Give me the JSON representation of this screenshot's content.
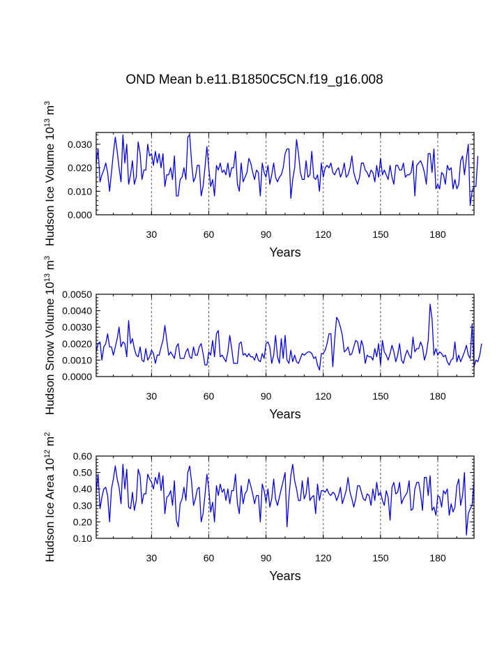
{
  "title": "OND Mean b.e11.B1850C5CN.f19_g16.008",
  "colors": {
    "line": "#0000ee",
    "axis": "#000000",
    "ref": "#555555"
  },
  "chart_data": [
    {
      "type": "line",
      "ylabel_main": "Hudson Ice Volume 10",
      "ylabel_exp": "13",
      "ylabel_unit": " m",
      "ylabel_unit_exp": "3",
      "xlabel": "Years",
      "xlim": [
        1,
        199
      ],
      "ylim": [
        0.0,
        0.035
      ],
      "xticks": [
        30,
        60,
        90,
        120,
        150,
        180
      ],
      "xtick_labels": [
        "30",
        "60",
        "90",
        "120",
        "150",
        "180"
      ],
      "yticks": [
        0.0,
        0.01,
        0.02,
        0.03
      ],
      "ytick_labels": [
        "0.000",
        "0.010",
        "0.020",
        "0.030"
      ],
      "ref_lines": [
        30,
        60,
        90,
        120,
        150,
        180
      ],
      "x_start": 1,
      "values": [
        0.022,
        0.028,
        0.014,
        0.017,
        0.019,
        0.022,
        0.018,
        0.01,
        0.018,
        0.026,
        0.033,
        0.027,
        0.02,
        0.014,
        0.034,
        0.022,
        0.03,
        0.013,
        0.017,
        0.023,
        0.013,
        0.016,
        0.031,
        0.026,
        0.015,
        0.019,
        0.019,
        0.03,
        0.025,
        0.026,
        0.021,
        0.027,
        0.022,
        0.026,
        0.02,
        0.026,
        0.012,
        0.017,
        0.017,
        0.02,
        0.015,
        0.025,
        0.008,
        0.008,
        0.015,
        0.016,
        0.02,
        0.015,
        0.033,
        0.034,
        0.022,
        0.014,
        0.016,
        0.021,
        0.021,
        0.008,
        0.012,
        0.02,
        0.029,
        0.02,
        0.012,
        0.015,
        0.008,
        0.021,
        0.019,
        0.022,
        0.018,
        0.019,
        0.017,
        0.022,
        0.016,
        0.02,
        0.02,
        0.027,
        0.013,
        0.01,
        0.022,
        0.014,
        0.016,
        0.018,
        0.024,
        0.022,
        0.018,
        0.015,
        0.019,
        0.018,
        0.008,
        0.022,
        0.018,
        0.016,
        0.021,
        0.013,
        0.017,
        0.022,
        0.016,
        0.014,
        0.016,
        0.017,
        0.02,
        0.026,
        0.028,
        0.028,
        0.007,
        0.015,
        0.02,
        0.032,
        0.026,
        0.018,
        0.015,
        0.015,
        0.023,
        0.016,
        0.017,
        0.027,
        0.016,
        0.015,
        0.017,
        0.01,
        0.022,
        0.016,
        0.02,
        0.021,
        0.02,
        0.022,
        0.018,
        0.017,
        0.019,
        0.02,
        0.016,
        0.018,
        0.022,
        0.016,
        0.017,
        0.02,
        0.025,
        0.018,
        0.015,
        0.013,
        0.016,
        0.022,
        0.022,
        0.019,
        0.018,
        0.016,
        0.019,
        0.018,
        0.014,
        0.021,
        0.016,
        0.024,
        0.017,
        0.019,
        0.017,
        0.015,
        0.021,
        0.016,
        0.013,
        0.021,
        0.021,
        0.019,
        0.019,
        0.022,
        0.016,
        0.017,
        0.017,
        0.018,
        0.023,
        0.008,
        0.021,
        0.022,
        0.023,
        0.021,
        0.018,
        0.013,
        0.026,
        0.026,
        0.018,
        0.028,
        0.011,
        0.013,
        0.011,
        0.018,
        0.017,
        0.013,
        0.021,
        0.019,
        0.02,
        0.011,
        0.015,
        0.011,
        0.013,
        0.023,
        0.025,
        0.017,
        0.024,
        0.03,
        0.004,
        0.01,
        0.012,
        0.012,
        0.025
      ]
    },
    {
      "type": "line",
      "ylabel_main": "Hudson Snow Volume 10",
      "ylabel_exp": "13",
      "ylabel_unit": " m",
      "ylabel_unit_exp": "3",
      "xlabel": "Years",
      "xlim": [
        1,
        199
      ],
      "ylim": [
        0.0,
        0.005
      ],
      "xticks": [
        30,
        60,
        90,
        120,
        150,
        180
      ],
      "xtick_labels": [
        "30",
        "60",
        "90",
        "120",
        "150",
        "180"
      ],
      "yticks": [
        0.0,
        0.001,
        0.002,
        0.003,
        0.004,
        0.005
      ],
      "ytick_labels": [
        "0.0000",
        "0.0010",
        "0.0020",
        "0.0030",
        "0.0040",
        "0.0050"
      ],
      "ref_lines": [
        30,
        60,
        90,
        120,
        150,
        180
      ],
      "x_start": 1,
      "values": [
        0.0015,
        0.002,
        0.0021,
        0.001,
        0.0018,
        0.002,
        0.0026,
        0.0018,
        0.0018,
        0.0013,
        0.0018,
        0.0023,
        0.003,
        0.0018,
        0.0021,
        0.002,
        0.0012,
        0.0034,
        0.002,
        0.0023,
        0.0017,
        0.0013,
        0.0012,
        0.0018,
        0.001,
        0.0009,
        0.0017,
        0.001,
        0.0012,
        0.0016,
        0.0014,
        0.0008,
        0.0013,
        0.0013,
        0.0018,
        0.0022,
        0.0031,
        0.0022,
        0.0013,
        0.0015,
        0.0013,
        0.0011,
        0.0018,
        0.002,
        0.0011,
        0.0011,
        0.0011,
        0.0015,
        0.0017,
        0.0012,
        0.0011,
        0.0018,
        0.0013,
        0.0013,
        0.0018,
        0.002,
        0.0014,
        0.0007,
        0.0007,
        0.0015,
        0.0013,
        0.0022,
        0.0012,
        0.0026,
        0.0028,
        0.0012,
        0.0013,
        0.0011,
        0.0009,
        0.0015,
        0.0025,
        0.0017,
        0.0008,
        0.0008,
        0.0008,
        0.002,
        0.0021,
        0.0013,
        0.0014,
        0.0012,
        0.0014,
        0.0012,
        0.0012,
        0.001,
        0.0014,
        0.001,
        0.0009,
        0.0014,
        0.0011,
        0.002,
        0.0021,
        0.0018,
        0.0008,
        0.0013,
        0.0025,
        0.0012,
        0.0008,
        0.0023,
        0.0011,
        0.0025,
        0.001,
        0.0008,
        0.0016,
        0.0009,
        0.0013,
        0.0009,
        0.0008,
        0.0011,
        0.0014,
        0.0013,
        0.0014,
        0.0015,
        0.0015,
        0.0014,
        0.0011,
        0.0012,
        0.0007,
        0.0004,
        0.0014,
        0.0014,
        0.0016,
        0.002,
        0.0026,
        0.0026,
        0.0006,
        0.0023,
        0.0036,
        0.0034,
        0.003,
        0.0025,
        0.0015,
        0.0016,
        0.0018,
        0.0013,
        0.0014,
        0.0018,
        0.0022,
        0.0021,
        0.0014,
        0.0022,
        0.0018,
        0.0008,
        0.0013,
        0.0012,
        0.0012,
        0.001,
        0.0017,
        0.0012,
        0.002,
        0.0007,
        0.0022,
        0.0015,
        0.0013,
        0.001,
        0.0014,
        0.0019,
        0.0015,
        0.0009,
        0.0013,
        0.002,
        0.001,
        0.0008,
        0.0013,
        0.0016,
        0.0013,
        0.0011,
        0.0024,
        0.0015,
        0.0017,
        0.0017,
        0.0021,
        0.0018,
        0.001,
        0.0014,
        0.0022,
        0.0044,
        0.0035,
        0.0013,
        0.0017,
        0.0013,
        0.0015,
        0.0014,
        0.0012,
        0.0013,
        0.0009,
        0.0007,
        0.001,
        0.0011,
        0.0021,
        0.0009,
        0.0013,
        0.0009,
        0.0012,
        0.0015,
        0.0019,
        0.0013,
        0.0011,
        0.0032,
        0.0006,
        0.001,
        0.0009,
        0.0013,
        0.002
      ]
    },
    {
      "type": "line",
      "ylabel_main": "Hudson Ice Area 10",
      "ylabel_exp": "12",
      "ylabel_unit": " m",
      "ylabel_unit_exp": "2",
      "xlabel": "Years",
      "xlim": [
        1,
        199
      ],
      "ylim": [
        0.1,
        0.6
      ],
      "xticks": [
        30,
        60,
        90,
        120,
        150,
        180
      ],
      "xtick_labels": [
        "30",
        "60",
        "90",
        "120",
        "150",
        "180"
      ],
      "yticks": [
        0.1,
        0.2,
        0.3,
        0.4,
        0.5,
        0.6
      ],
      "ytick_labels": [
        "0.10",
        "0.20",
        "0.30",
        "0.40",
        "0.50",
        "0.60"
      ],
      "ref_lines": [
        30,
        60,
        90,
        120,
        150,
        180
      ],
      "x_start": 1,
      "values": [
        0.38,
        0.49,
        0.28,
        0.35,
        0.4,
        0.41,
        0.36,
        0.2,
        0.4,
        0.46,
        0.54,
        0.46,
        0.41,
        0.31,
        0.55,
        0.4,
        0.52,
        0.29,
        0.28,
        0.38,
        0.27,
        0.33,
        0.52,
        0.48,
        0.31,
        0.37,
        0.37,
        0.49,
        0.46,
        0.44,
        0.4,
        0.47,
        0.43,
        0.5,
        0.39,
        0.48,
        0.25,
        0.35,
        0.36,
        0.39,
        0.3,
        0.45,
        0.21,
        0.17,
        0.31,
        0.34,
        0.41,
        0.33,
        0.5,
        0.54,
        0.44,
        0.3,
        0.34,
        0.4,
        0.41,
        0.2,
        0.25,
        0.36,
        0.49,
        0.4,
        0.26,
        0.32,
        0.2,
        0.42,
        0.36,
        0.43,
        0.38,
        0.4,
        0.33,
        0.4,
        0.31,
        0.39,
        0.39,
        0.49,
        0.31,
        0.25,
        0.42,
        0.31,
        0.37,
        0.39,
        0.46,
        0.42,
        0.37,
        0.31,
        0.36,
        0.36,
        0.2,
        0.43,
        0.39,
        0.32,
        0.4,
        0.29,
        0.34,
        0.46,
        0.34,
        0.3,
        0.35,
        0.4,
        0.45,
        0.5,
        0.17,
        0.35,
        0.48,
        0.55,
        0.45,
        0.4,
        0.33,
        0.33,
        0.45,
        0.34,
        0.37,
        0.47,
        0.33,
        0.35,
        0.36,
        0.25,
        0.43,
        0.33,
        0.39,
        0.39,
        0.38,
        0.4,
        0.37,
        0.36,
        0.38,
        0.37,
        0.33,
        0.36,
        0.41,
        0.31,
        0.35,
        0.39,
        0.47,
        0.38,
        0.34,
        0.29,
        0.34,
        0.42,
        0.42,
        0.38,
        0.34,
        0.33,
        0.37,
        0.36,
        0.3,
        0.4,
        0.33,
        0.44,
        0.36,
        0.38,
        0.33,
        0.3,
        0.39,
        0.35,
        0.21,
        0.41,
        0.44,
        0.37,
        0.38,
        0.44,
        0.31,
        0.34,
        0.36,
        0.38,
        0.45,
        0.27,
        0.28,
        0.4,
        0.44,
        0.44,
        0.37,
        0.27,
        0.47,
        0.47,
        0.36,
        0.48,
        0.27,
        0.29,
        0.24,
        0.36,
        0.35,
        0.29,
        0.39,
        0.37,
        0.4,
        0.24,
        0.31,
        0.26,
        0.29,
        0.42,
        0.46,
        0.3,
        0.36,
        0.5,
        0.12,
        0.25,
        0.28,
        0.3,
        0.45
      ]
    }
  ]
}
